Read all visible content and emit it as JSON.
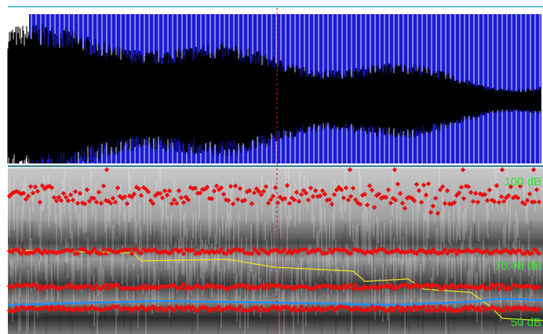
{
  "spectrogram": {
    "intensity_labels": {
      "top": "100 dB",
      "middle": "70.48 dB",
      "bottom": "50 dB"
    }
  }
}
